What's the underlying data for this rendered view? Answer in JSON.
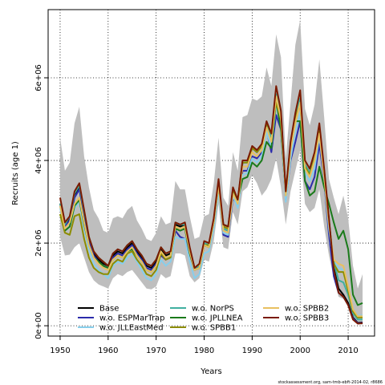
{
  "chart_data": {
    "type": "line",
    "title": "",
    "xlabel": "Years",
    "ylabel": "Recruits (age 1)",
    "xlim": [
      1947.5,
      2015.5
    ],
    "ylim": [
      -250000,
      7650000
    ],
    "x_ticks": [
      1950,
      1960,
      1970,
      1980,
      1990,
      2000,
      2010
    ],
    "x_tick_labels": [
      "1950",
      "1960",
      "1970",
      "1980",
      "1990",
      "2000",
      "2010"
    ],
    "y_ticks": [
      0,
      2000000,
      4000000,
      6000000
    ],
    "y_tick_labels": [
      "0e+00",
      "2e+06",
      "4e+06",
      "6e+06"
    ],
    "grid": "dotted",
    "legend_position": "bottom",
    "footer": "stockassessment.org, sam-tmb-ebft-2014-02, r8686",
    "x": [
      1950,
      1951,
      1952,
      1953,
      1954,
      1955,
      1956,
      1957,
      1958,
      1959,
      1960,
      1961,
      1962,
      1963,
      1964,
      1965,
      1966,
      1967,
      1968,
      1969,
      1970,
      1971,
      1972,
      1973,
      1974,
      1975,
      1976,
      1977,
      1978,
      1979,
      1980,
      1981,
      1982,
      1983,
      1984,
      1985,
      1986,
      1987,
      1988,
      1989,
      1990,
      1991,
      1992,
      1993,
      1994,
      1995,
      1996,
      1997,
      1998,
      1999,
      2000,
      2001,
      2002,
      2003,
      2004,
      2005,
      2006,
      2007,
      2008,
      2009,
      2010,
      2011,
      2012,
      2013
    ],
    "band": {
      "lower": [
        2150000,
        1700000,
        1720000,
        1900000,
        2000000,
        1650000,
        1300000,
        1100000,
        1000000,
        950000,
        900000,
        1150000,
        1250000,
        1200000,
        1300000,
        1350000,
        1200000,
        1050000,
        900000,
        880000,
        950000,
        1250000,
        1150000,
        1200000,
        1750000,
        1750000,
        1700000,
        1200000,
        1050000,
        1150000,
        1600000,
        1550000,
        2050000,
        2950000,
        1900000,
        1850000,
        2750000,
        2450000,
        3250000,
        3350000,
        3650000,
        3450000,
        3150000,
        3300000,
        3550000,
        4050000,
        3350000,
        2450000,
        3250000,
        3750000,
        4250000,
        2950000,
        2750000,
        2850000,
        3300000,
        2400000,
        1700000,
        1150000,
        700000,
        650000,
        550000,
        200000,
        50000,
        30000
      ],
      "upper": [
        4550000,
        3750000,
        3950000,
        4900000,
        5300000,
        4100000,
        3350000,
        2800000,
        2600000,
        2300000,
        2250000,
        2600000,
        2650000,
        2600000,
        2800000,
        2900000,
        2550000,
        2350000,
        2100000,
        2050000,
        2250000,
        2650000,
        2450000,
        2500000,
        3500000,
        3300000,
        3300000,
        2650000,
        2100000,
        2150000,
        2650000,
        2700000,
        3450000,
        4550000,
        3100000,
        2900000,
        4200000,
        3750000,
        5050000,
        5100000,
        5500000,
        5450000,
        5550000,
        6250000,
        5800000,
        7050000,
        6500000,
        4050000,
        5400000,
        6800000,
        7400000,
        5250000,
        4850000,
        5350000,
        6450000,
        5050000,
        3550000,
        3100000,
        2700000,
        3150000,
        2600000,
        1450000,
        900000,
        1250000
      ]
    },
    "series": [
      {
        "name": "Base",
        "color": "#000000",
        "values": [
          2950000,
          2450000,
          2600000,
          3150000,
          3350000,
          2700000,
          2100000,
          1750000,
          1600000,
          1500000,
          1450000,
          1700000,
          1800000,
          1750000,
          1900000,
          2000000,
          1800000,
          1650000,
          1450000,
          1400000,
          1550000,
          1850000,
          1700000,
          1750000,
          2450000,
          2400000,
          2450000,
          1850000,
          1400000,
          1450000,
          2000000,
          1950000,
          2550000,
          3450000,
          2350000,
          2300000,
          3250000,
          3000000,
          3950000,
          3950000,
          4300000,
          4200000,
          4350000,
          4900000,
          4550000,
          5600000,
          5100000,
          3200000,
          4350000,
          5000000,
          5500000,
          3900000,
          3700000,
          4100000,
          4750000,
          3750000,
          2550000,
          1400000,
          900000,
          750000,
          550000,
          200000,
          70000,
          80000
        ]
      },
      {
        "name": "w.o. ESPMarTrap",
        "color": "#2b2bab",
        "values": [
          2900000,
          2400000,
          2550000,
          3100000,
          3300000,
          2650000,
          2050000,
          1700000,
          1550000,
          1450000,
          1400000,
          1650000,
          1750000,
          1700000,
          1850000,
          1950000,
          1750000,
          1600000,
          1400000,
          1350000,
          1500000,
          1700000,
          1600000,
          1650000,
          2300000,
          2150000,
          2100000,
          1750000,
          1350000,
          1400000,
          1950000,
          1900000,
          2450000,
          3350000,
          2200000,
          2150000,
          3100000,
          2900000,
          3750000,
          3750000,
          4100000,
          4050000,
          4200000,
          4750000,
          4200000,
          5100000,
          4750000,
          3050000,
          4000000,
          4450000,
          4950000,
          3500000,
          3300000,
          3600000,
          4400000,
          3500000,
          2200000,
          1200000,
          800000,
          700000,
          500000,
          180000,
          60000,
          70000
        ]
      },
      {
        "name": "w.o. JLLEastMed",
        "color": "#87ceeb",
        "values": [
          2850000,
          2300000,
          2400000,
          2850000,
          3000000,
          2350000,
          1850000,
          1500000,
          1350000,
          1250000,
          1150000,
          1450000,
          1550000,
          1500000,
          1650000,
          1750000,
          1550000,
          1350000,
          1150000,
          1100000,
          1250000,
          1600000,
          1450000,
          1550000,
          2150000,
          2100000,
          2100000,
          1550000,
          1150000,
          1250000,
          1750000,
          1800000,
          2350000,
          3250000,
          2250000,
          2200000,
          3150000,
          2850000,
          3650000,
          3700000,
          4050000,
          3950000,
          4100000,
          4700000,
          4300000,
          5350000,
          4800000,
          3000000,
          4050000,
          4700000,
          5150000,
          3700000,
          3500000,
          3800000,
          4600000,
          3550000,
          2350000,
          1550000,
          1400000,
          1350000,
          900000,
          400000,
          250000,
          250000
        ]
      },
      {
        "name": "w.o. NorPS",
        "color": "#40b0a0",
        "values": [
          2950000,
          2450000,
          2650000,
          3200000,
          3400000,
          2750000,
          2150000,
          1800000,
          1650000,
          1550000,
          1450000,
          1750000,
          1850000,
          1800000,
          1950000,
          2050000,
          1850000,
          1700000,
          1500000,
          1450000,
          1600000,
          1900000,
          1750000,
          1800000,
          2500000,
          2450000,
          2450000,
          1850000,
          1400000,
          1450000,
          2000000,
          1950000,
          2550000,
          3450000,
          2350000,
          2300000,
          3250000,
          3000000,
          3950000,
          3950000,
          4300000,
          4200000,
          4350000,
          4900000,
          4550000,
          5600000,
          5100000,
          3200000,
          4350000,
          5000000,
          5500000,
          3900000,
          3700000,
          4100000,
          4750000,
          3700000,
          2500000,
          1550000,
          1100000,
          1050000,
          750000,
          300000,
          150000,
          150000
        ]
      },
      {
        "name": "w.o. JPLLNEA",
        "color": "#1a7a1a",
        "values": [
          2700000,
          2300000,
          2400000,
          2900000,
          3050000,
          2450000,
          1950000,
          1650000,
          1550000,
          1450000,
          1400000,
          1600000,
          1700000,
          1650000,
          1800000,
          1850000,
          1700000,
          1550000,
          1350000,
          1300000,
          1450000,
          1750000,
          1650000,
          1700000,
          2350000,
          2300000,
          2350000,
          1750000,
          1350000,
          1400000,
          1950000,
          1900000,
          2500000,
          3400000,
          2450000,
          2400000,
          3300000,
          3050000,
          3550000,
          3600000,
          3950000,
          3850000,
          4000000,
          4450000,
          4300000,
          5450000,
          4750000,
          3250000,
          4350000,
          4950000,
          4950000,
          3500000,
          3150000,
          3250000,
          3850000,
          3350000,
          2950000,
          2500000,
          2100000,
          2300000,
          1850000,
          750000,
          500000,
          550000
        ]
      },
      {
        "name": "w.o. SPBB1",
        "color": "#8c8c00",
        "values": [
          2700000,
          2250000,
          2200000,
          2650000,
          2700000,
          2100000,
          1650000,
          1400000,
          1300000,
          1250000,
          1250000,
          1500000,
          1600000,
          1550000,
          1750000,
          1800000,
          1600000,
          1450000,
          1250000,
          1200000,
          1350000,
          1750000,
          1600000,
          1650000,
          2400000,
          2350000,
          2400000,
          1800000,
          1350000,
          1400000,
          1950000,
          1950000,
          2550000,
          3450000,
          2400000,
          2350000,
          3300000,
          3050000,
          3950000,
          3950000,
          4300000,
          4200000,
          4350000,
          4900000,
          4650000,
          5400000,
          5000000,
          3250000,
          4400000,
          5050000,
          5350000,
          3850000,
          3650000,
          4050000,
          4700000,
          3650000,
          2500000,
          1500000,
          1300000,
          1300000,
          850000,
          350000,
          200000,
          200000
        ]
      },
      {
        "name": "w.o. SPBB2",
        "color": "#e8c060",
        "values": [
          2900000,
          2350000,
          2500000,
          2950000,
          3100000,
          2500000,
          1950000,
          1650000,
          1500000,
          1400000,
          1350000,
          1600000,
          1700000,
          1650000,
          1800000,
          1900000,
          1700000,
          1550000,
          1350000,
          1300000,
          1450000,
          1800000,
          1650000,
          1700000,
          2400000,
          2350000,
          2400000,
          1800000,
          1350000,
          1400000,
          1950000,
          1900000,
          2500000,
          3400000,
          2300000,
          2250000,
          3200000,
          2950000,
          3850000,
          3850000,
          4200000,
          4100000,
          4250000,
          4800000,
          4450000,
          5550000,
          5000000,
          3150000,
          4250000,
          4900000,
          5400000,
          3800000,
          3600000,
          4000000,
          4650000,
          3600000,
          2450000,
          1600000,
          1500000,
          1450000,
          950000,
          400000,
          230000,
          230000
        ]
      },
      {
        "name": "w.o. SPBB3",
        "color": "#7a1a00",
        "values": [
          3100000,
          2500000,
          2650000,
          3250000,
          3450000,
          2800000,
          2150000,
          1800000,
          1650000,
          1550000,
          1450000,
          1750000,
          1850000,
          1800000,
          1950000,
          2050000,
          1850000,
          1700000,
          1500000,
          1450000,
          1600000,
          1900000,
          1750000,
          1800000,
          2500000,
          2450000,
          2500000,
          1900000,
          1400000,
          1500000,
          2050000,
          2000000,
          2600000,
          3550000,
          2450000,
          2400000,
          3350000,
          3050000,
          4000000,
          4000000,
          4350000,
          4250000,
          4400000,
          4950000,
          4650000,
          5800000,
          5200000,
          3250000,
          4450000,
          5150000,
          5700000,
          4000000,
          3800000,
          4200000,
          4900000,
          3800000,
          2600000,
          1350000,
          800000,
          700000,
          500000,
          150000,
          50000,
          60000
        ]
      }
    ]
  }
}
